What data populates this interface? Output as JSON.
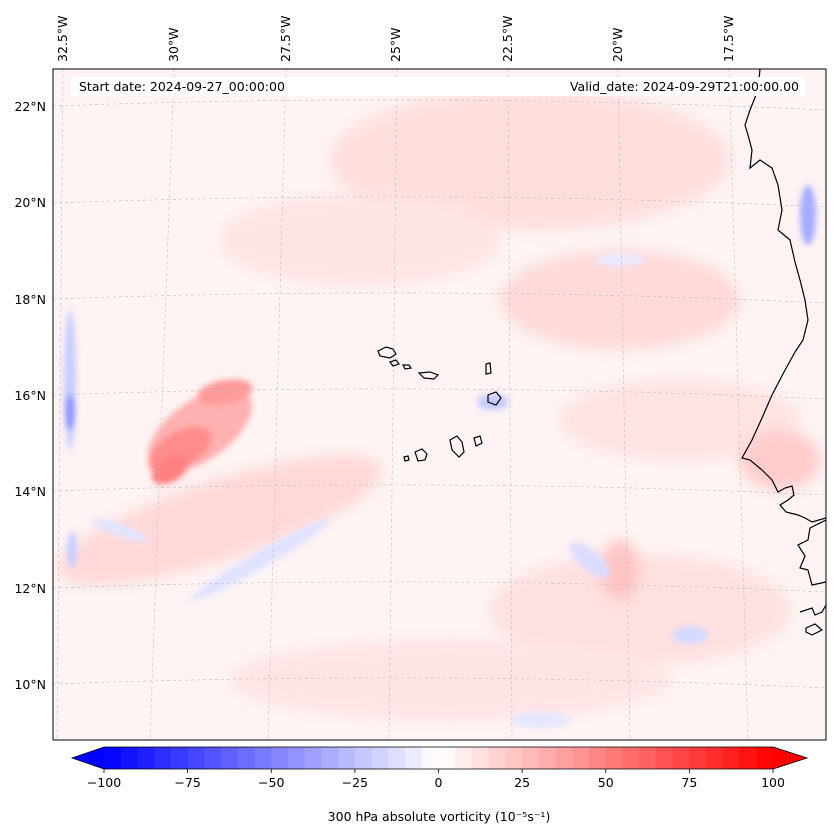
{
  "header": {
    "start_date": "Start date: 2024-09-27_00:00:00",
    "valid_date": "Valid_date: 2024-09-29T21:00:00.00"
  },
  "lon_labels": [
    "32.5°W",
    "30°W",
    "27.5°W",
    "25°W",
    "22.5°W",
    "20°W",
    "17.5°W"
  ],
  "lat_labels": [
    "22°N",
    "20°N",
    "18°N",
    "16°N",
    "14°N",
    "12°N",
    "10°N"
  ],
  "colorbar": {
    "label": "300 hPa absolute vorticity (10⁻⁵s⁻¹)",
    "ticks": [
      "−100",
      "−75",
      "−50",
      "−25",
      "0",
      "25",
      "50",
      "75",
      "100"
    ],
    "range": [
      -100,
      100
    ],
    "low_color": "#0000ff",
    "mid_color": "#ffffff",
    "high_color": "#ff0000"
  },
  "colors": {
    "coast": "#000000",
    "grid": "#bbbbbb"
  }
}
